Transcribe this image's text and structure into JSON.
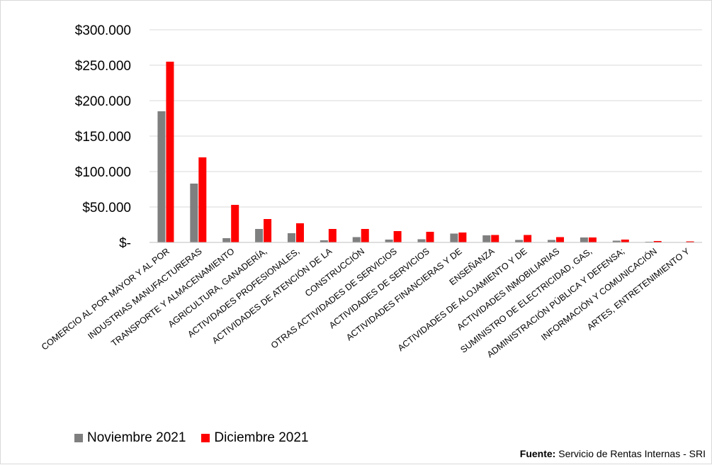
{
  "chart_data": {
    "type": "bar",
    "title": "",
    "xlabel": "",
    "ylabel": "",
    "ylim": [
      0,
      300000
    ],
    "yticks": [
      0,
      50000,
      100000,
      150000,
      200000,
      250000,
      300000
    ],
    "ytick_labels": [
      "$-",
      "$50.000",
      "$100.000",
      "$150.000",
      "$200.000",
      "$250.000",
      "$300.000"
    ],
    "grid": true,
    "legend_position": "bottom-left",
    "categories": [
      "COMERCIO AL POR MAYOR Y AL POR",
      "INDUSTRIAS MANUFACTURERAS",
      "TRANSPORTE Y ALMACENAMIENTO",
      "AGRICULTURA, GANADERÍA,",
      "ACTIVIDADES PROFESIONALES,",
      "ACTIVIDADES DE ATENCIÓN DE LA",
      "CONSTRUCCIÓN",
      "OTRAS ACTIVIDADES DE SERVICIOS",
      "ACTIVIDADES DE SERVICIOS",
      "ACTIVIDADES FINANCIERAS Y DE",
      "ENSEÑANZA",
      "ACTIVIDADES DE ALOJAMIENTO Y DE",
      "ACTIVIDADES INMOBILIARIAS",
      "SUMINISTRO DE ELECTRICIDAD, GAS,",
      "ADMINISTRACIÓN PÚBLICA Y DEFENSA;",
      "INFORMACIÓN Y COMUNICACIÓN",
      "ARTES, ENTRETENIMIENTO Y"
    ],
    "series": [
      {
        "name": "Noviembre 2021",
        "color": "#7f7f7f",
        "values": [
          185000,
          83000,
          6000,
          19000,
          13000,
          3000,
          7500,
          4000,
          4500,
          12500,
          10000,
          3500,
          3500,
          7000,
          2500,
          1000,
          500
        ]
      },
      {
        "name": "Diciembre 2021",
        "color": "#ff0000",
        "values": [
          255000,
          120000,
          53000,
          33000,
          27000,
          19000,
          19000,
          16000,
          15000,
          14000,
          10500,
          10500,
          7500,
          7000,
          4000,
          2000,
          1500
        ]
      }
    ]
  },
  "legend": {
    "items": [
      {
        "label": "Noviembre 2021",
        "color": "#7f7f7f"
      },
      {
        "label": "Diciembre 2021",
        "color": "#ff0000"
      }
    ]
  },
  "source": {
    "label": "Fuente:",
    "text": " Servicio de Rentas Internas - SRI"
  }
}
